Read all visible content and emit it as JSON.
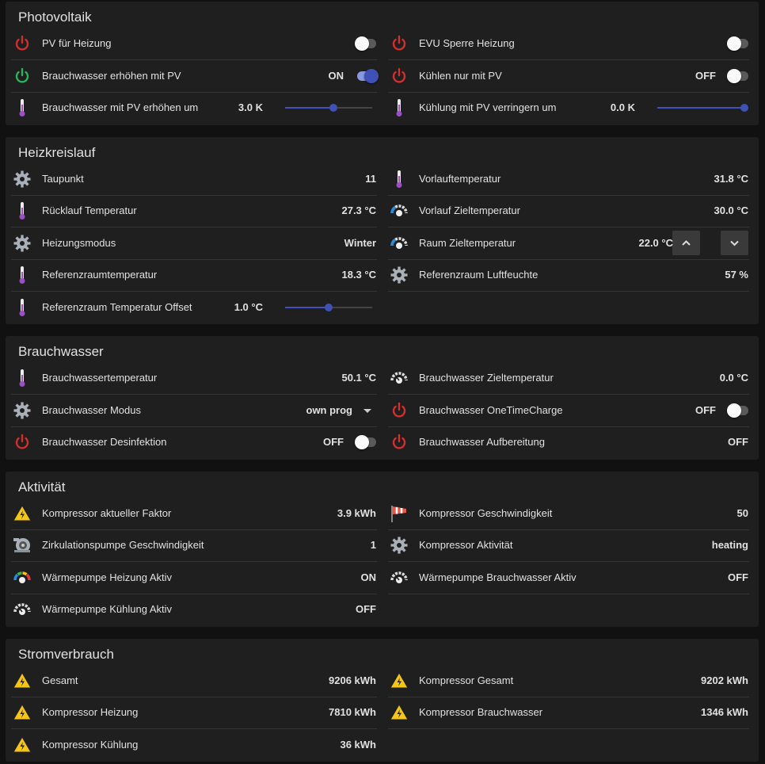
{
  "sections": [
    {
      "title": "Photovoltaik",
      "rows": [
        [
          {
            "icon": "power-red",
            "label": "PV für Heizung",
            "control": "toggle",
            "on": false
          },
          {
            "icon": "power-red",
            "label": "EVU Sperre Heizung",
            "control": "toggle",
            "on": false
          }
        ],
        [
          {
            "icon": "power-green",
            "label": "Brauchwasser erhöhen mit PV",
            "value": "ON",
            "control": "toggle",
            "on": true
          },
          {
            "icon": "power-red",
            "label": "Kühlen nur mit PV",
            "value": "OFF",
            "control": "toggle",
            "on": false
          }
        ],
        [
          {
            "icon": "thermometer",
            "label": "Brauchwasser mit PV erhöhen um",
            "value": "3.0 K",
            "control": "slider",
            "slider": 55
          },
          {
            "icon": "thermometer",
            "label": "Kühlung mit PV verringern um",
            "value": "0.0 K",
            "control": "slider",
            "slider": 100
          }
        ]
      ]
    },
    {
      "title": "Heizkreislauf",
      "rows": [
        [
          {
            "icon": "gear",
            "label": "Taupunkt",
            "value": "11"
          },
          {
            "icon": "thermometer",
            "label": "Vorlauftemperatur",
            "value": "31.8 °C"
          }
        ],
        [
          {
            "icon": "thermometer",
            "label": "Rücklauf Temperatur",
            "value": "27.3 °C"
          },
          {
            "icon": "gauge-blue",
            "label": "Vorlauf Zieltemperatur",
            "value": "30.0 °C"
          }
        ],
        [
          {
            "icon": "gear",
            "label": "Heizungsmodus",
            "value": "Winter"
          },
          {
            "icon": "gauge-blue",
            "label": "Raum Zieltemperatur",
            "value": "22.0 °C",
            "control": "stepper"
          }
        ],
        [
          {
            "icon": "thermometer",
            "label": "Referenzraumtemperatur",
            "value": "18.3 °C"
          },
          {
            "icon": "gear",
            "label": "Referenzraum Luftfeuchte",
            "value": "57 %"
          }
        ],
        [
          {
            "icon": "thermometer",
            "label": "Referenzraum Temperatur Offset",
            "value": "1.0 °C",
            "control": "slider",
            "slider": 50
          }
        ]
      ]
    },
    {
      "title": "Brauchwasser",
      "rows": [
        [
          {
            "icon": "thermometer",
            "label": "Brauchwassertemperatur",
            "value": "50.1 °C"
          },
          {
            "icon": "gauge",
            "label": "Brauchwasser Zieltemperatur",
            "value": "0.0 °C"
          }
        ],
        [
          {
            "icon": "gear",
            "label": "Brauchwasser Modus",
            "value": "own prog",
            "control": "select"
          },
          {
            "icon": "power-red",
            "label": "Brauchwasser OneTimeCharge",
            "value": "OFF",
            "control": "toggle",
            "on": false
          }
        ],
        [
          {
            "icon": "power-red",
            "label": "Brauchwasser Desinfektion",
            "value": "OFF",
            "control": "toggle",
            "on": false
          },
          {
            "icon": "power-red",
            "label": "Brauchwasser Aufbereitung",
            "value": "OFF"
          }
        ]
      ]
    },
    {
      "title": "Aktivität",
      "rows": [
        [
          {
            "icon": "warning",
            "label": "Kompressor aktueller Faktor",
            "value": "3.9 kWh"
          },
          {
            "icon": "windsock",
            "label": "Kompressor Geschwindigkeit",
            "value": "50"
          }
        ],
        [
          {
            "icon": "pump",
            "label": "Zirkulationspumpe Geschwindigkeit",
            "value": "1"
          },
          {
            "icon": "gear",
            "label": "Kompressor Aktivität",
            "value": "heating"
          }
        ],
        [
          {
            "icon": "gauge-color",
            "label": "Wärmepumpe Heizung Aktiv",
            "value": "ON"
          },
          {
            "icon": "gauge",
            "label": "Wärmepumpe Brauchwasser Aktiv",
            "value": "OFF"
          }
        ],
        [
          {
            "icon": "gauge",
            "label": "Wärmepumpe Kühlung Aktiv",
            "value": "OFF"
          }
        ]
      ]
    },
    {
      "title": "Stromverbrauch",
      "rows": [
        [
          {
            "icon": "warning",
            "label": "Gesamt",
            "value": "9206 kWh"
          },
          {
            "icon": "warning",
            "label": "Kompressor Gesamt",
            "value": "9202 kWh"
          }
        ],
        [
          {
            "icon": "warning",
            "label": "Kompressor Heizung",
            "value": "7810 kWh"
          },
          {
            "icon": "warning",
            "label": "Kompressor Brauchwasser",
            "value": "1346 kWh"
          }
        ],
        [
          {
            "icon": "warning",
            "label": "Kompressor Kühlung",
            "value": "36 kWh"
          }
        ]
      ]
    }
  ]
}
